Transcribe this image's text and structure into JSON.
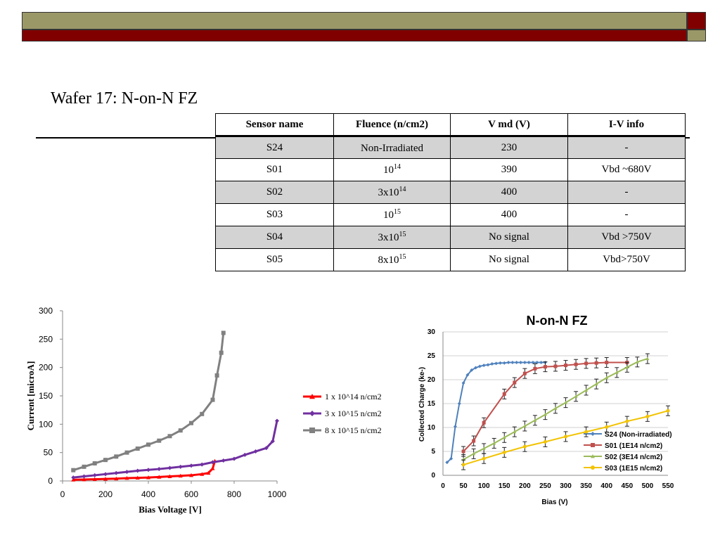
{
  "title": "Wafer 17: N-on-N FZ",
  "table": {
    "headers": [
      "Sensor name",
      "Fluence (n/cm2)",
      "V md (V)",
      "I-V info"
    ],
    "rows": [
      {
        "name": "S24",
        "fluence": "Non-Irradiated",
        "fluence_exp": "",
        "vmd": "230",
        "iv": "-"
      },
      {
        "name": "S01",
        "fluence": "10",
        "fluence_exp": "14",
        "vmd": "390",
        "iv": "Vbd ~680V"
      },
      {
        "name": "S02",
        "fluence": "3x10",
        "fluence_exp": "14",
        "vmd": "400",
        "iv": "-"
      },
      {
        "name": "S03",
        "fluence": "10",
        "fluence_exp": "15",
        "vmd": "400",
        "iv": "-"
      },
      {
        "name": "S04",
        "fluence": "3x10",
        "fluence_exp": "15",
        "vmd": "No signal",
        "iv": "Vbd >750V"
      },
      {
        "name": "S05",
        "fluence": "8x10",
        "fluence_exp": "15",
        "vmd": "No signal",
        "iv": "Vbd>750V"
      }
    ]
  },
  "chart_data": [
    {
      "type": "line",
      "title": "",
      "xlabel": "Bias  Voltage [V]",
      "ylabel": "Current [microA]",
      "xlim": [
        0,
        1000
      ],
      "ylim": [
        0,
        300
      ],
      "xticks": [
        "0",
        "200",
        "400",
        "600",
        "800",
        "1000"
      ],
      "yticks": [
        "0",
        "50",
        "100",
        "150",
        "200",
        "250",
        "300"
      ],
      "legend": "right",
      "series": [
        {
          "name": "1 x 10^14 n/cm2",
          "color": "#ff0000",
          "marker": "triangle",
          "x": [
            50,
            100,
            150,
            200,
            250,
            300,
            350,
            400,
            450,
            500,
            550,
            600,
            650,
            680,
            700,
            710
          ],
          "y": [
            2,
            2.5,
            3,
            3.5,
            4,
            5,
            5.5,
            6,
            7,
            8,
            9,
            10,
            12,
            14,
            22,
            35
          ]
        },
        {
          "name": "3 x 10^15 n/cm2",
          "color": "#7030a0",
          "marker": "diamond",
          "x": [
            50,
            100,
            150,
            200,
            250,
            300,
            350,
            400,
            450,
            500,
            550,
            600,
            650,
            700,
            750,
            800,
            850,
            900,
            950,
            980,
            1000
          ],
          "y": [
            6,
            8,
            10,
            12,
            14,
            16,
            18,
            19.5,
            21,
            23,
            25,
            27,
            29,
            33,
            36,
            39,
            46,
            52,
            58,
            70,
            106
          ]
        },
        {
          "name": "8 x 10^15 n/cm2",
          "color": "#808080",
          "marker": "square",
          "x": [
            50,
            100,
            150,
            200,
            250,
            300,
            350,
            400,
            450,
            500,
            550,
            600,
            650,
            700,
            720,
            740,
            750
          ],
          "y": [
            19,
            25,
            31,
            37,
            43,
            50,
            57,
            64,
            71,
            79,
            89,
            102,
            118,
            143,
            186,
            226,
            261
          ]
        }
      ]
    },
    {
      "type": "line",
      "title": "N-on-N FZ",
      "xlabel": "Bias (V)",
      "ylabel": "Collected Charge (ke-)",
      "xlim": [
        0,
        550
      ],
      "ylim": [
        0,
        30
      ],
      "xticks": [
        "0",
        "50",
        "100",
        "150",
        "200",
        "250",
        "300",
        "350",
        "400",
        "450",
        "500",
        "550"
      ],
      "yticks": [
        "0",
        "5",
        "10",
        "15",
        "20",
        "25",
        "30"
      ],
      "legend": "bottom-right",
      "series": [
        {
          "name": "S24 (Non-irradiated)",
          "color": "#4f81bd",
          "marker": "diamond",
          "x": [
            10,
            20,
            30,
            40,
            50,
            60,
            70,
            80,
            90,
            100,
            110,
            120,
            130,
            140,
            150,
            160,
            170,
            180,
            190,
            200,
            210,
            220,
            230,
            240,
            250
          ],
          "y": [
            2.7,
            3.5,
            10.2,
            15,
            19.3,
            21,
            22,
            22.5,
            22.8,
            23,
            23.1,
            23.3,
            23.4,
            23.5,
            23.5,
            23.6,
            23.6,
            23.6,
            23.6,
            23.6,
            23.6,
            23.6,
            23.6,
            23.6,
            23.6
          ]
        },
        {
          "name": "S01 (1E14 n/cm2)",
          "color": "#c0504d",
          "marker": "square",
          "x": [
            50,
            75,
            100,
            150,
            175,
            200,
            225,
            250,
            275,
            300,
            325,
            350,
            375,
            400,
            450
          ],
          "y": [
            5,
            7.2,
            11,
            17,
            19.4,
            21.3,
            22.3,
            22.7,
            22.8,
            23,
            23.2,
            23.4,
            23.5,
            23.6,
            23.6
          ]
        },
        {
          "name": "S02 (3E14 n/cm2)",
          "color": "#9bbb59",
          "marker": "triangle",
          "x": [
            50,
            75,
            100,
            125,
            150,
            175,
            200,
            225,
            250,
            275,
            300,
            325,
            350,
            375,
            400,
            425,
            450,
            475,
            500
          ],
          "y": [
            3.3,
            4.5,
            5.6,
            6.7,
            7.9,
            9.1,
            10.3,
            11.5,
            12.7,
            14,
            15.2,
            16.5,
            17.8,
            19.1,
            20.4,
            21.5,
            22.6,
            23.7,
            24.4
          ]
        },
        {
          "name": "S03 (1E15 n/cm2)",
          "color": "#f2c300",
          "marker": "circle",
          "x": [
            50,
            100,
            150,
            200,
            250,
            300,
            350,
            400,
            450,
            500,
            550
          ],
          "y": [
            2.2,
            3.5,
            4.8,
            6,
            7,
            8.1,
            9.1,
            10.1,
            11.3,
            12.3,
            13.5
          ]
        }
      ]
    }
  ]
}
